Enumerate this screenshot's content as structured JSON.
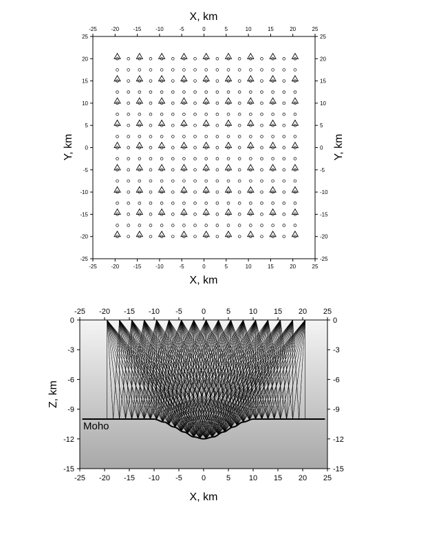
{
  "chart_data": [
    {
      "type": "scatter",
      "title": "",
      "xlabel": "X, km",
      "ylabel": "Y, km",
      "xlim": [
        -25,
        25
      ],
      "ylim": [
        -25,
        25
      ],
      "ticks": [
        "-25",
        "-20",
        "-15",
        "-10",
        "-5",
        "0",
        "5",
        "10",
        "15",
        "20",
        "25"
      ],
      "grid": false,
      "series": [
        {
          "marker": "circle",
          "x": [
            -19.5,
            -17.0,
            -14.5,
            -12.0,
            -9.5,
            -7.0,
            -4.5,
            -2.0,
            0.5,
            3.0,
            5.5,
            8.0,
            10.5,
            13.0,
            15.5,
            18.0,
            20.5
          ],
          "y": [
            20.0,
            17.5,
            15.0,
            12.5,
            10.0,
            7.5,
            5.0,
            2.5,
            0.0,
            -2.5,
            -5.0,
            -7.5,
            -10.0,
            -12.5,
            -15.0,
            -17.5,
            -20.0
          ]
        },
        {
          "marker": "triangle",
          "x": [
            -19.5,
            -14.5,
            -9.5,
            -4.5,
            0.5,
            5.5,
            10.5,
            15.5,
            20.5
          ],
          "y": [
            20.5,
            15.5,
            10.5,
            5.5,
            0.5,
            -4.5,
            -9.5,
            -14.5,
            -19.5
          ]
        }
      ]
    },
    {
      "type": "line",
      "title": "",
      "xlabel": "X, km",
      "ylabel": "Z, km",
      "xlim": [
        -25,
        25
      ],
      "ylim": [
        -15,
        0
      ],
      "xticks": [
        "-25",
        "-20",
        "-15",
        "-10",
        "-5",
        "0",
        "5",
        "10",
        "15",
        "20",
        "25"
      ],
      "yticks": [
        "0",
        "-3",
        "-6",
        "-9",
        "-12",
        "-15"
      ],
      "grid": false,
      "annotation": "Moho",
      "moho": {
        "x": [
          -24.5,
          -10,
          -8,
          -6,
          -4,
          -2,
          0,
          2,
          4,
          6,
          8,
          10,
          24.5
        ],
        "z": [
          -10.0,
          -10.0,
          -10.3,
          -10.8,
          -11.3,
          -11.8,
          -12.0,
          -11.8,
          -11.3,
          -10.8,
          -10.3,
          -10.0,
          -10.0
        ]
      },
      "stations_x": [
        -19.5,
        -17.0,
        -14.5,
        -12.0,
        -9.5,
        -7.0,
        -4.5,
        -2.0,
        0.5,
        3.0,
        5.5,
        8.0,
        10.5,
        13.0,
        15.5,
        18.0,
        20.5
      ]
    }
  ],
  "colors": {
    "background_top": "#f4f4f4",
    "background_bottom": "#a8a8a8",
    "rays": "#000000",
    "moho": "#000000"
  }
}
